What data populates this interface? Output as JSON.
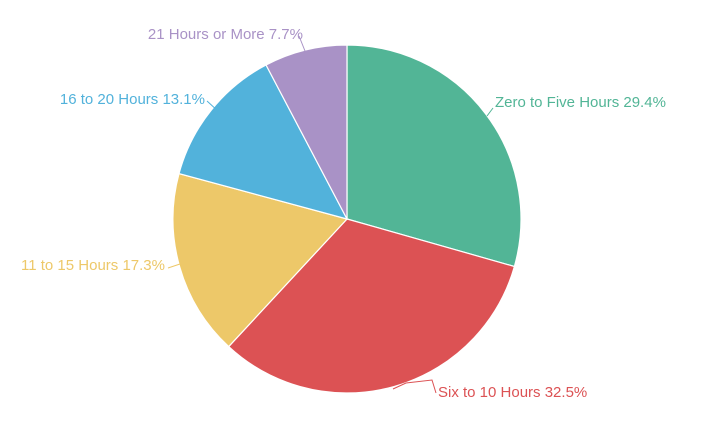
{
  "chart_data": {
    "type": "pie",
    "title": "",
    "start_angle_deg": 0,
    "direction": "clockwise",
    "legend": "none",
    "slices": [
      {
        "label": "Zero to Five Hours",
        "value": 29.4,
        "value_label": "29.4%",
        "color": "#52b596"
      },
      {
        "label": "Six to 10 Hours",
        "value": 32.5,
        "value_label": "32.5%",
        "color": "#dc5254"
      },
      {
        "label": "11 to 15 Hours",
        "value": 17.3,
        "value_label": "17.3%",
        "color": "#edc869"
      },
      {
        "label": "16 to 20 Hours",
        "value": 13.1,
        "value_label": "13.1%",
        "color": "#52b2db"
      },
      {
        "label": "21 Hours or More",
        "value": 7.7,
        "value_label": "7.7%",
        "color": "#a992c6"
      }
    ]
  }
}
